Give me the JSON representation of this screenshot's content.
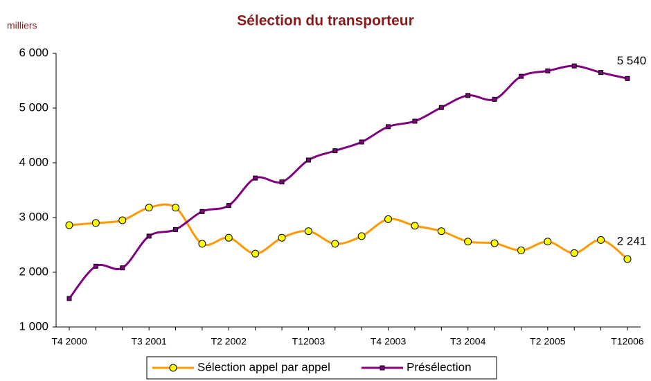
{
  "chart_data": {
    "type": "line",
    "title": "Sélection du transporteur",
    "y_label": "milliers",
    "categories": [
      "T4 2000",
      null,
      null,
      "T3 2001",
      null,
      null,
      "T2 2002",
      null,
      null,
      "T12003",
      null,
      null,
      "T4 2003",
      null,
      null,
      "T3 2004",
      null,
      null,
      "T2 2005",
      null,
      null,
      "T12006"
    ],
    "series": [
      {
        "name": "Sélection appel par appel",
        "color": "#ff9900",
        "marker": "circle",
        "values": [
          2860,
          2900,
          2950,
          3180,
          3180,
          2520,
          2630,
          2340,
          2630,
          2750,
          2520,
          2660,
          2970,
          2850,
          2750,
          2560,
          2530,
          2400,
          2560,
          2350,
          2590,
          2241
        ],
        "value_labels": [
          null,
          null,
          null,
          null,
          null,
          null,
          null,
          null,
          null,
          null,
          null,
          null,
          null,
          null,
          null,
          null,
          null,
          null,
          null,
          null,
          null,
          "2 241"
        ]
      },
      {
        "name": "Présélection",
        "color": "#800080",
        "marker": "square",
        "values": [
          1520,
          2110,
          2080,
          2660,
          2780,
          3110,
          3220,
          3720,
          3650,
          4050,
          4220,
          4380,
          4660,
          4760,
          5010,
          5230,
          5160,
          5580,
          5680,
          5770,
          5650,
          5540
        ],
        "value_labels": [
          null,
          null,
          null,
          null,
          null,
          null,
          null,
          null,
          null,
          null,
          null,
          null,
          null,
          null,
          null,
          null,
          null,
          null,
          null,
          null,
          null,
          "5 540"
        ]
      }
    ],
    "ylim": [
      1000,
      6000
    ],
    "yticks": [
      {
        "value": 1000,
        "label": "1 000"
      },
      {
        "value": 2000,
        "label": "2 000"
      },
      {
        "value": 3000,
        "label": "3 000"
      },
      {
        "value": 4000,
        "label": "4 000"
      },
      {
        "value": 5000,
        "label": "5 000"
      },
      {
        "value": 6000,
        "label": "6 000"
      }
    ],
    "grid": false,
    "legend": "bottom"
  }
}
